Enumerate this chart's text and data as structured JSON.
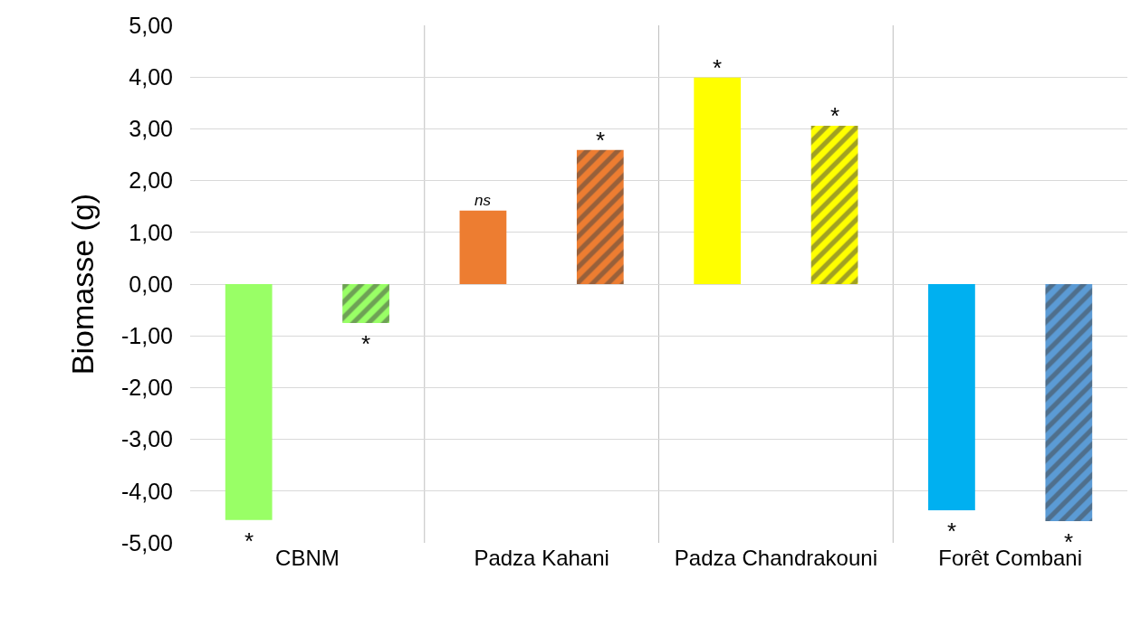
{
  "chart_data": {
    "type": "bar",
    "ylabel": "Biomasse (g)",
    "categories": [
      "CBNM",
      "Padza Kahani",
      "Padza Chandrakouni",
      "Forêt Combani"
    ],
    "series": [
      {
        "colors": [
          "#99ff66",
          "#ed7d31",
          "#ffff00",
          "#00b0f0"
        ],
        "values": [
          -4.56,
          1.42,
          3.99,
          -4.37
        ]
      },
      {
        "colors": [
          "#99ff66",
          "#ed7d31",
          "#ffff00",
          "#5b9bd5"
        ],
        "values": [
          -0.75,
          2.59,
          3.06,
          -4.58
        ]
      }
    ],
    "ylim": [
      -5,
      5
    ],
    "yticks": [
      {
        "value": -5,
        "label": "-5,00"
      },
      {
        "value": -4,
        "label": "-4,00"
      },
      {
        "value": -3,
        "label": "-3,00"
      },
      {
        "value": -2,
        "label": "-2,00"
      },
      {
        "value": -1,
        "label": "-1,00"
      },
      {
        "value": 0,
        "label": "0,00"
      },
      {
        "value": 1,
        "label": "1,00"
      },
      {
        "value": 2,
        "label": "2,00"
      },
      {
        "value": 3,
        "label": "3,00"
      },
      {
        "value": 4,
        "label": "4,00"
      },
      {
        "value": 5,
        "label": "5,00"
      }
    ],
    "grid": true,
    "annotations": [
      "*",
      "*",
      "ns",
      "*",
      "*",
      "*",
      "*",
      "*"
    ]
  }
}
